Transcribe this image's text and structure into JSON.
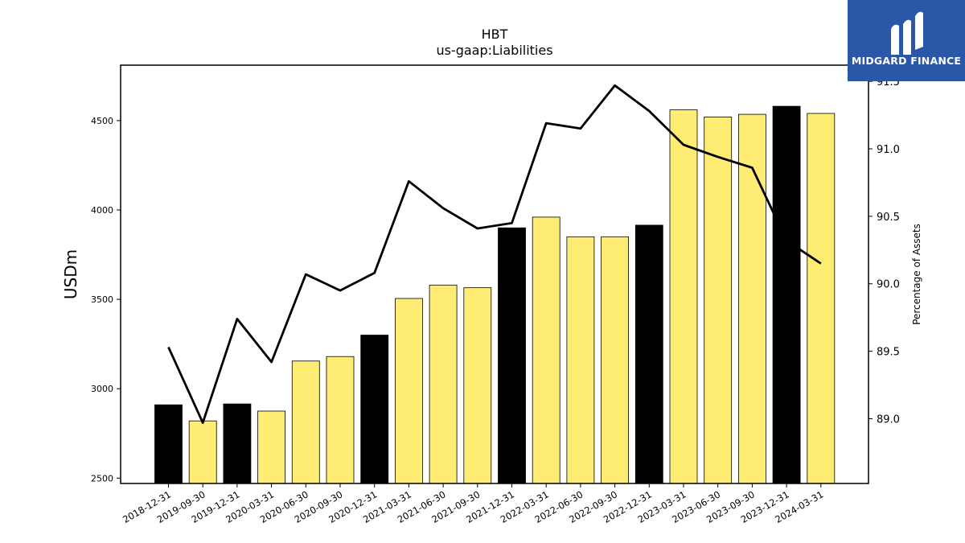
{
  "logo": {
    "text": "MIDGARD FINANCE",
    "color": "#2b57a8"
  },
  "chart_data": {
    "type": "bar",
    "title": "HBT",
    "subtitle": "us-gaap:Liabilities",
    "ylabel": "USDm",
    "y2label": "Percentage of Assets",
    "ylim": [
      2470,
      4810
    ],
    "y2lim": [
      88.52,
      91.62
    ],
    "yticks": [
      2500,
      3000,
      3500,
      4000,
      4500
    ],
    "y2ticks": [
      "89.0",
      "89.5",
      "90.0",
      "90.5",
      "91.0",
      "91.5"
    ],
    "categories": [
      "2018-12-31",
      "2019-09-30",
      "2019-12-31",
      "2020-03-31",
      "2020-06-30",
      "2020-09-30",
      "2020-12-31",
      "2021-03-31",
      "2021-06-30",
      "2021-09-30",
      "2021-12-31",
      "2022-03-31",
      "2022-06-30",
      "2022-09-30",
      "2022-12-31",
      "2023-03-31",
      "2023-06-30",
      "2023-09-30",
      "2023-12-31",
      "2024-03-31"
    ],
    "series": [
      {
        "axis": "left",
        "kind": "bar",
        "values": [
          2910,
          2820,
          2915,
          2875,
          3155,
          3180,
          3300,
          3505,
          3580,
          3565,
          3900,
          3960,
          3850,
          3850,
          3915,
          4560,
          4520,
          4535,
          4580,
          4540
        ],
        "colors": [
          "#000000",
          "#feec74",
          "#000000",
          "#feec74",
          "#feec74",
          "#feec74",
          "#000000",
          "#feec74",
          "#feec74",
          "#feec74",
          "#000000",
          "#feec74",
          "#feec74",
          "#feec74",
          "#000000",
          "#feec74",
          "#feec74",
          "#feec74",
          "#000000",
          "#feec74"
        ]
      },
      {
        "axis": "right",
        "kind": "line",
        "color": "#000000",
        "values": [
          89.53,
          88.97,
          89.74,
          89.42,
          90.07,
          89.95,
          90.08,
          90.76,
          90.56,
          90.41,
          90.45,
          91.19,
          91.15,
          91.47,
          91.28,
          91.03,
          90.94,
          90.86,
          90.32,
          90.15
        ]
      }
    ],
    "grid": false,
    "legend": "none"
  }
}
